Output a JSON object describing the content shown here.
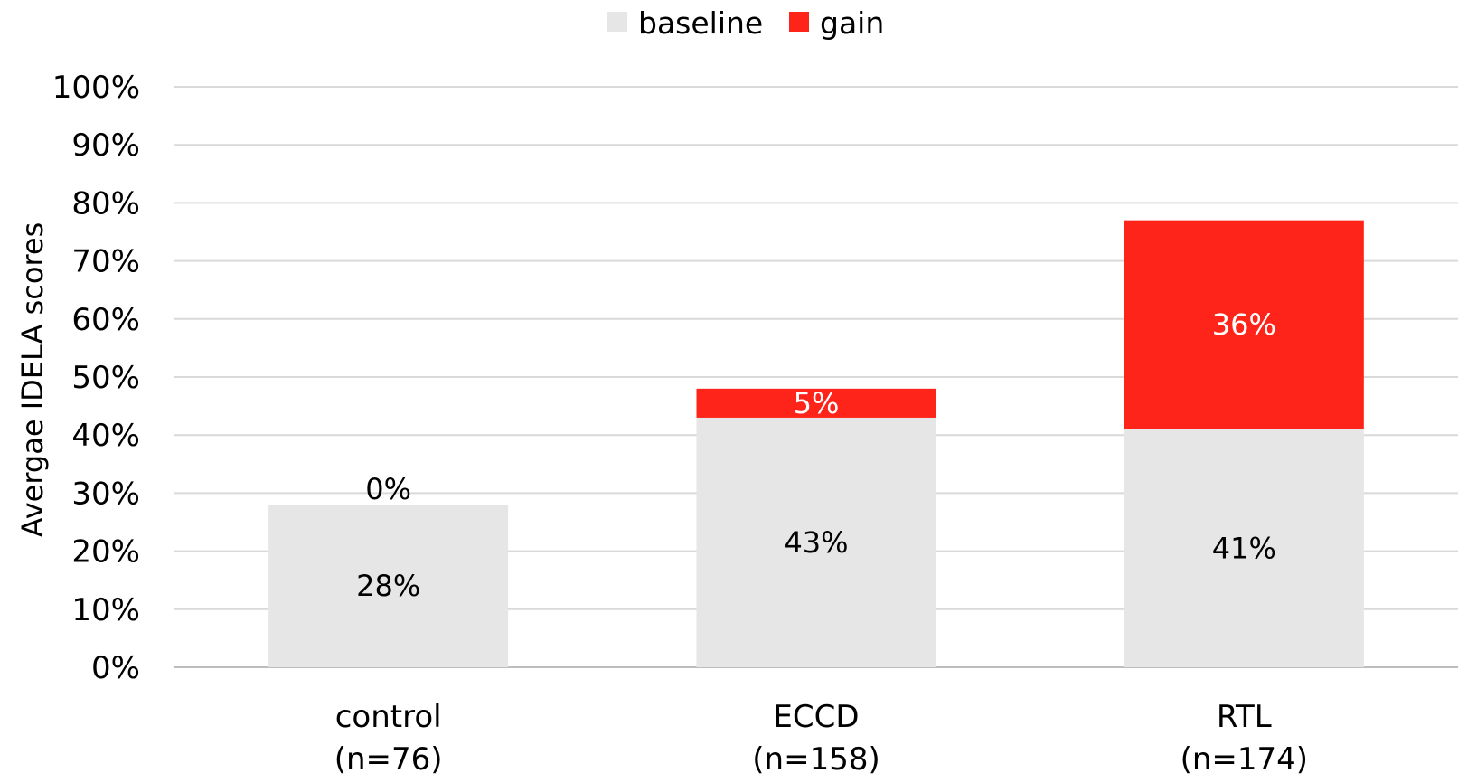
{
  "chart_data": {
    "type": "bar",
    "stacked": true,
    "title": "",
    "xlabel": "",
    "ylabel": "Avergae IDELA scores",
    "ylim": [
      0,
      100
    ],
    "yticks": [
      "0%",
      "10%",
      "20%",
      "30%",
      "40%",
      "50%",
      "60%",
      "70%",
      "80%",
      "90%",
      "100%"
    ],
    "grid": true,
    "legend_position": "top-center",
    "categories": [
      {
        "line1": "control",
        "line2": "(n=76)"
      },
      {
        "line1": "ECCD",
        "line2": "(n=158)"
      },
      {
        "line1": "RTL",
        "line2": "(n=174)"
      }
    ],
    "series": [
      {
        "name": "baseline",
        "color": "#e6e6e6",
        "label_color": "#000000",
        "values": [
          28,
          43,
          41
        ],
        "labels": [
          "28%",
          "43%",
          "41%"
        ]
      },
      {
        "name": "gain",
        "color": "#ff2419",
        "label_color": "#ffffff",
        "values": [
          0,
          5,
          36
        ],
        "labels": [
          "0%",
          "5%",
          "36%"
        ]
      }
    ]
  }
}
